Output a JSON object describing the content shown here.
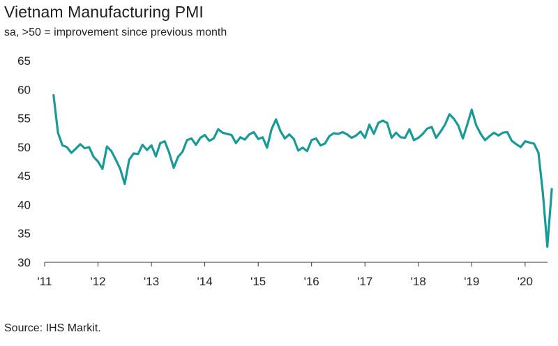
{
  "title": "Vietnam Manufacturing PMI",
  "subtitle": "sa, >50 = improvement since previous month",
  "source": "Source: IHS Markit.",
  "colors": {
    "line": "#1a9a96",
    "axis": "#333333",
    "text": "#222222"
  },
  "chart_data": {
    "type": "line",
    "title": "Vietnam Manufacturing PMI",
    "subtitle": "sa, >50 = improvement since previous month",
    "xlabel": "",
    "ylabel": "",
    "ylim": [
      30,
      65
    ],
    "yticks": [
      30,
      35,
      40,
      45,
      50,
      55,
      60,
      65
    ],
    "xlim": [
      2011.0,
      2020.42
    ],
    "xticks": [
      {
        "value": 2011,
        "label": "'11"
      },
      {
        "value": 2012,
        "label": "'12"
      },
      {
        "value": 2013,
        "label": "'13"
      },
      {
        "value": 2014,
        "label": "'14"
      },
      {
        "value": 2015,
        "label": "'15"
      },
      {
        "value": 2016,
        "label": "'16"
      },
      {
        "value": 2017,
        "label": "'17"
      },
      {
        "value": 2018,
        "label": "'18"
      },
      {
        "value": 2019,
        "label": "'19"
      },
      {
        "value": 2020,
        "label": "'20"
      }
    ],
    "grid": false,
    "series": [
      {
        "name": "Vietnam Manufacturing PMI",
        "start": [
          2011,
          3
        ],
        "values": [
          59.0,
          52.5,
          50.3,
          50.0,
          49.0,
          49.7,
          50.5,
          49.8,
          50.0,
          48.3,
          47.5,
          46.2,
          50.1,
          49.3,
          47.8,
          46.2,
          43.6,
          47.8,
          48.9,
          48.8,
          50.4,
          49.5,
          50.3,
          48.4,
          50.7,
          51.0,
          49.0,
          46.4,
          48.3,
          49.2,
          51.2,
          51.5,
          50.4,
          51.6,
          52.1,
          51.1,
          51.5,
          53.1,
          52.5,
          52.3,
          52.1,
          50.7,
          51.7,
          51.3,
          52.2,
          52.6,
          51.4,
          51.7,
          49.9,
          53.1,
          54.8,
          52.8,
          51.5,
          52.2,
          51.4,
          49.4,
          49.9,
          49.3,
          51.2,
          51.5,
          50.3,
          50.6,
          51.9,
          52.4,
          52.3,
          52.6,
          52.2,
          51.6,
          52.0,
          52.7,
          51.6,
          53.9,
          52.3,
          54.2,
          54.6,
          54.2,
          51.6,
          52.5,
          51.7,
          51.6,
          53.1,
          51.2,
          51.6,
          52.3,
          53.2,
          53.5,
          51.6,
          52.7,
          53.9,
          55.7,
          54.9,
          53.7,
          51.5,
          53.9,
          56.5,
          53.8,
          52.3,
          51.2,
          51.9,
          52.5,
          52.0,
          52.5,
          52.6,
          51.1,
          50.5,
          50.0,
          51.0,
          50.8,
          50.6,
          49.0,
          41.9,
          32.7,
          42.7
        ]
      }
    ]
  }
}
